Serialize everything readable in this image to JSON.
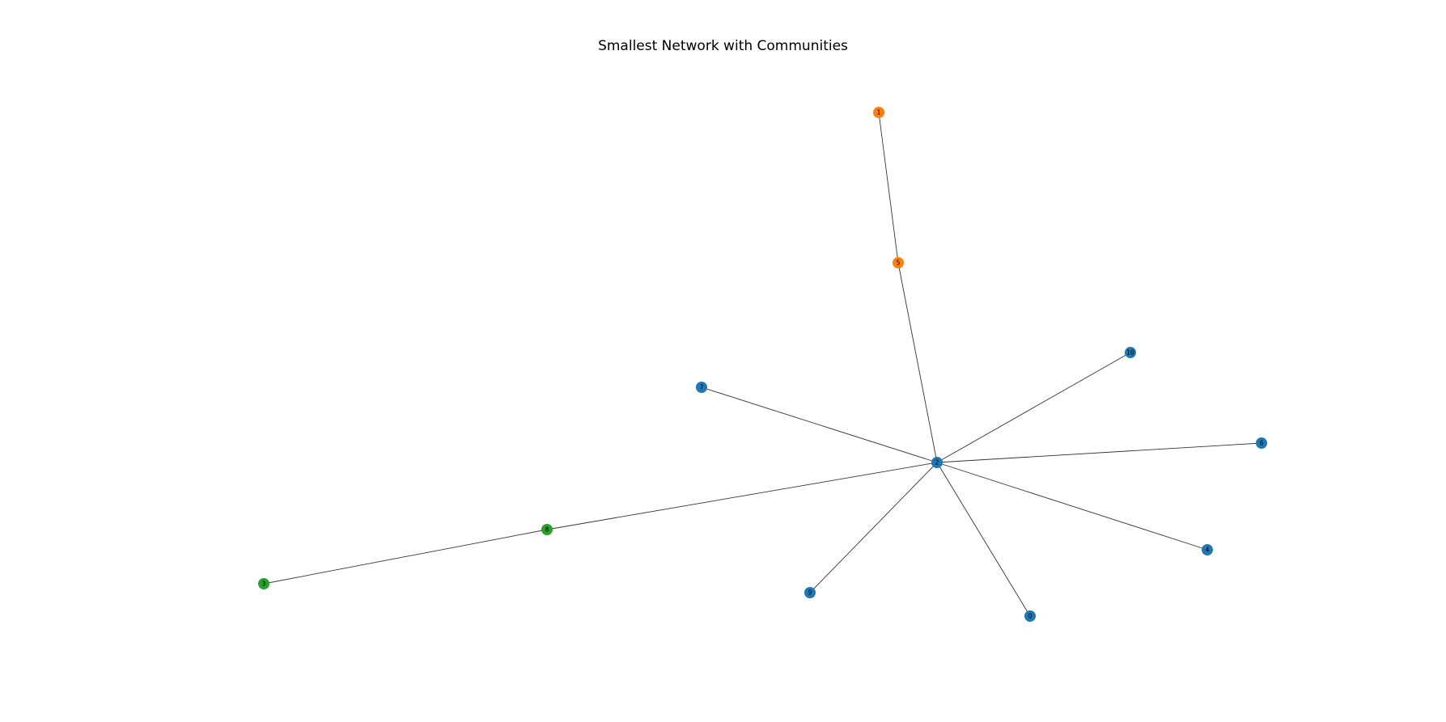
{
  "title": "Smallest Network with Communities",
  "community_colors": {
    "blue": "#1f77b4",
    "orange": "#ff7f0e",
    "green": "#2ca02c"
  },
  "nodes": [
    {
      "id": "0",
      "community": "blue"
    },
    {
      "id": "1",
      "community": "orange"
    },
    {
      "id": "2",
      "community": "blue"
    },
    {
      "id": "3",
      "community": "green"
    },
    {
      "id": "4",
      "community": "blue"
    },
    {
      "id": "5",
      "community": "orange"
    },
    {
      "id": "6",
      "community": "blue"
    },
    {
      "id": "7",
      "community": "blue"
    },
    {
      "id": "8",
      "community": "green"
    },
    {
      "id": "9",
      "community": "blue"
    },
    {
      "id": "10",
      "community": "blue"
    }
  ],
  "edges": [
    [
      "1",
      "5"
    ],
    [
      "5",
      "2"
    ],
    [
      "2",
      "10"
    ],
    [
      "2",
      "7"
    ],
    [
      "2",
      "6"
    ],
    [
      "2",
      "4"
    ],
    [
      "2",
      "0"
    ],
    [
      "2",
      "9"
    ],
    [
      "2",
      "8"
    ],
    [
      "8",
      "3"
    ]
  ]
}
